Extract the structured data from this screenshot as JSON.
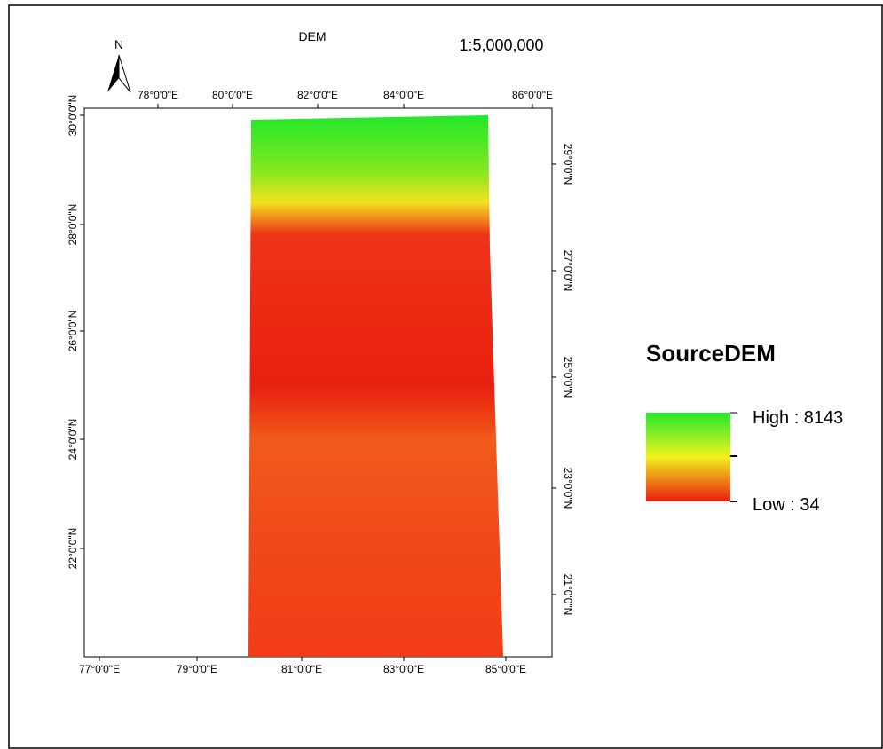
{
  "map": {
    "title": "DEM",
    "scale": "1:5,000,000",
    "north": "N",
    "top_ticks": [
      "78°0'0\"E",
      "80°0'0\"E",
      "82°0'0\"E",
      "84°0'0\"E",
      "86°0'0\"E"
    ],
    "bottom_ticks": [
      "77°0'0\"E",
      "79°0'0\"E",
      "81°0'0\"E",
      "83°0'0\"E",
      "85°0'0\"E"
    ],
    "left_ticks": [
      "30°0'0\"N",
      "28°0'0\"N",
      "26°0'0\"N",
      "24°0'0\"N",
      "22°0'0\"N"
    ],
    "right_ticks": [
      "29°0'0\"N",
      "27°0'0\"N",
      "25°0'0\"N",
      "23°0'0\"N",
      "21°0'0\"N"
    ]
  },
  "legend": {
    "title": "SourceDEM",
    "high": "High : 8143",
    "low": "Low : 34"
  }
}
